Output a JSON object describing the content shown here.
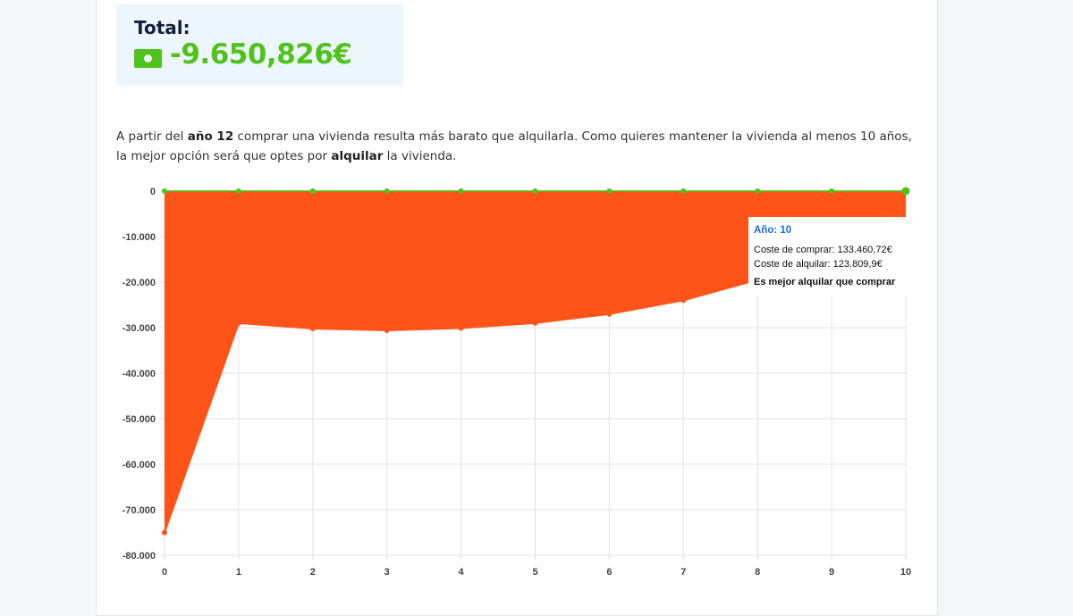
{
  "total": {
    "label": "Total:",
    "value": "-9.650,826€",
    "icon": "money-bill-icon"
  },
  "description": {
    "p1": "A partir del ",
    "b1": "año 12",
    "p2": " comprar una vivienda resulta más barato que alquilarla. Como quieres mantener la vivienda al menos 10 años, la mejor opción será que optes por ",
    "b2": "alquilar",
    "p3": " la vivienda."
  },
  "tooltip": {
    "title": "Año: 10",
    "line1": "Coste de comprar: 133.460,72€",
    "line2": "Coste de alquilar: 123.809,9€",
    "line3": "Es mejor alquilar que comprar"
  },
  "colors": {
    "area": "#fe5419",
    "zero_series": "#4fc21b",
    "accent": "#4fc21b",
    "tooltip_title": "#1a6cf0"
  },
  "chart_data": {
    "type": "area",
    "x": [
      0,
      1,
      2,
      3,
      4,
      5,
      6,
      7,
      8,
      9,
      10
    ],
    "series": [
      {
        "values": [
          0,
          0,
          0,
          0,
          0,
          0,
          0,
          0,
          0,
          0,
          0
        ],
        "color": "#4fc21b"
      },
      {
        "values": [
          -75000,
          -29000,
          -30200,
          -30600,
          -30100,
          -29000,
          -27000,
          -24000,
          -19500,
          -14500,
          -9650
        ],
        "color": "#fe5419"
      }
    ],
    "xticks": [
      "0",
      "1",
      "2",
      "3",
      "4",
      "5",
      "6",
      "7",
      "8",
      "9",
      "10"
    ],
    "yticks": [
      "0",
      "-10.000",
      "-20.000",
      "-30.000",
      "-40.000",
      "-50.000",
      "-60.000",
      "-70.000",
      "-80.000"
    ],
    "ylim": [
      -80000,
      0
    ],
    "xlim": [
      0,
      10
    ],
    "grid": true
  }
}
